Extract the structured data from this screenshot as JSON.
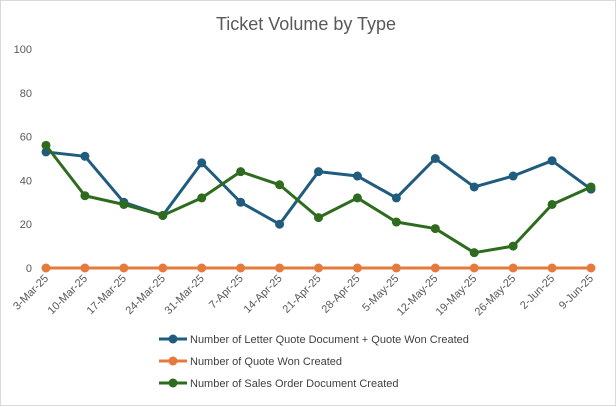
{
  "chart_data": {
    "type": "line",
    "title": "Ticket Volume by Type",
    "xlabel": "",
    "ylabel": "",
    "ylim": [
      0,
      100
    ],
    "yticks": [
      0,
      20,
      40,
      60,
      80,
      100
    ],
    "grid": false,
    "legend_position": "bottom",
    "categories": [
      "3-Mar-25",
      "10-Mar-25",
      "17-Mar-25",
      "24-Mar-25",
      "31-Mar-25",
      "7-Apr-25",
      "14-Apr-25",
      "21-Apr-25",
      "28-Apr-25",
      "5-May-25",
      "12-May-25",
      "19-May-25",
      "26-May-25",
      "2-Jun-25",
      "9-Jun-25"
    ],
    "series": [
      {
        "name": "Number of Letter Quote Document + Quote Won Created",
        "color": "#1f5c7e",
        "values": [
          53,
          51,
          30,
          24,
          48,
          30,
          20,
          44,
          42,
          32,
          50,
          37,
          42,
          49,
          36
        ]
      },
      {
        "name": "Number of Quote Won Created",
        "color": "#e67a3c",
        "values": [
          0,
          0,
          0,
          0,
          0,
          0,
          0,
          0,
          0,
          0,
          0,
          0,
          0,
          0,
          0
        ]
      },
      {
        "name": "Number of Sales Order Document Created",
        "color": "#2e6b1f",
        "values": [
          56,
          33,
          29,
          24,
          32,
          44,
          38,
          23,
          32,
          21,
          18,
          7,
          10,
          29,
          37
        ]
      }
    ]
  }
}
